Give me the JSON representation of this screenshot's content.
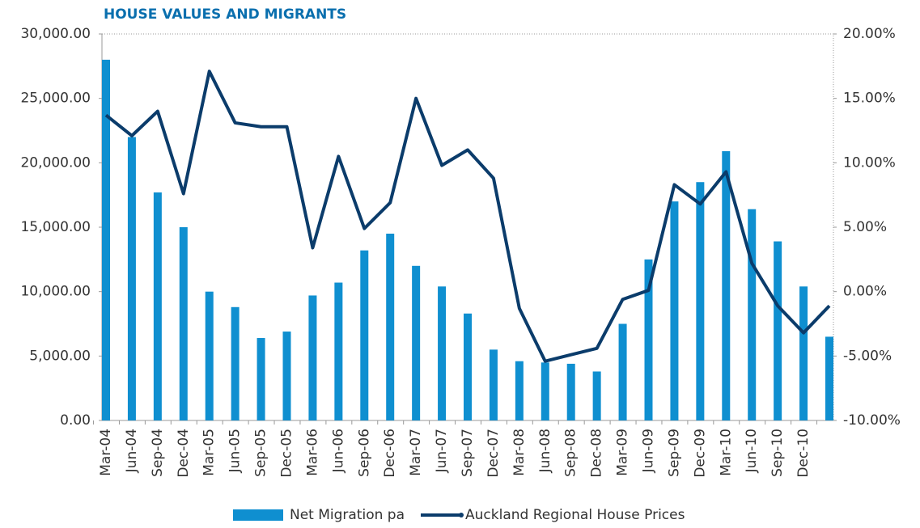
{
  "chart_data": {
    "type": "bar_line",
    "title": "HOUSE VALUES AND MIGRANTS",
    "categories": [
      "Mar-04",
      "Jun-04",
      "Sep-04",
      "Dec-04",
      "Mar-05",
      "Jun-05",
      "Sep-05",
      "Dec-05",
      "Mar-06",
      "Jun-06",
      "Sep-06",
      "Dec-06",
      "Mar-07",
      "Jun-07",
      "Sep-07",
      "Dec-07",
      "Mar-08",
      "Jun-08",
      "Sep-08",
      "Dec-08",
      "Mar-09",
      "Jun-09",
      "Sep-09",
      "Dec-09",
      "Mar-10",
      "Jun-10",
      "Sep-10",
      "Dec-10",
      null
    ],
    "series": [
      {
        "name": "Net Migration pa",
        "type": "bar",
        "color": "#0f8fd0",
        "values": [
          28000,
          22000,
          17700,
          15000,
          10000,
          8800,
          6400,
          6900,
          9700,
          10700,
          13200,
          14500,
          12000,
          10400,
          8300,
          5500,
          4600,
          4500,
          4400,
          3800,
          7500,
          12500,
          17000,
          18500,
          20900,
          16400,
          13900,
          10400,
          6500
        ]
      },
      {
        "name": "Auckland Regional House Prices",
        "type": "line",
        "axis": "y2",
        "color": "#0b3c6b",
        "values": [
          13.7,
          12.1,
          14.0,
          7.6,
          17.1,
          13.1,
          12.8,
          12.8,
          3.4,
          10.5,
          4.9,
          6.9,
          15.0,
          9.8,
          11.0,
          8.8,
          -1.3,
          -5.4,
          -4.9,
          -4.4,
          -0.6,
          0.1,
          8.3,
          6.8,
          9.3,
          2.2,
          -1.1,
          -3.2,
          -1.1
        ]
      }
    ],
    "ylim": [
      0,
      30000
    ],
    "yticks": [
      {
        "value": 0,
        "label": "0.00"
      },
      {
        "value": 5000,
        "label": "5,000.00"
      },
      {
        "value": 10000,
        "label": "10,000.00"
      },
      {
        "value": 15000,
        "label": "15,000.00"
      },
      {
        "value": 20000,
        "label": "20,000.00"
      },
      {
        "value": 25000,
        "label": "25,000.00"
      },
      {
        "value": 30000,
        "label": "30,000.00"
      }
    ],
    "y2lim": [
      -10,
      20
    ],
    "y2ticks": [
      {
        "value": -10,
        "label": "-10.00%"
      },
      {
        "value": -5,
        "label": "-5.00%"
      },
      {
        "value": 0,
        "label": "0.00%"
      },
      {
        "value": 5,
        "label": "5.00%"
      },
      {
        "value": 10,
        "label": "10.00%"
      },
      {
        "value": 15,
        "label": "15.00%"
      },
      {
        "value": 20,
        "label": "20.00%"
      }
    ],
    "legend": "bottom"
  }
}
